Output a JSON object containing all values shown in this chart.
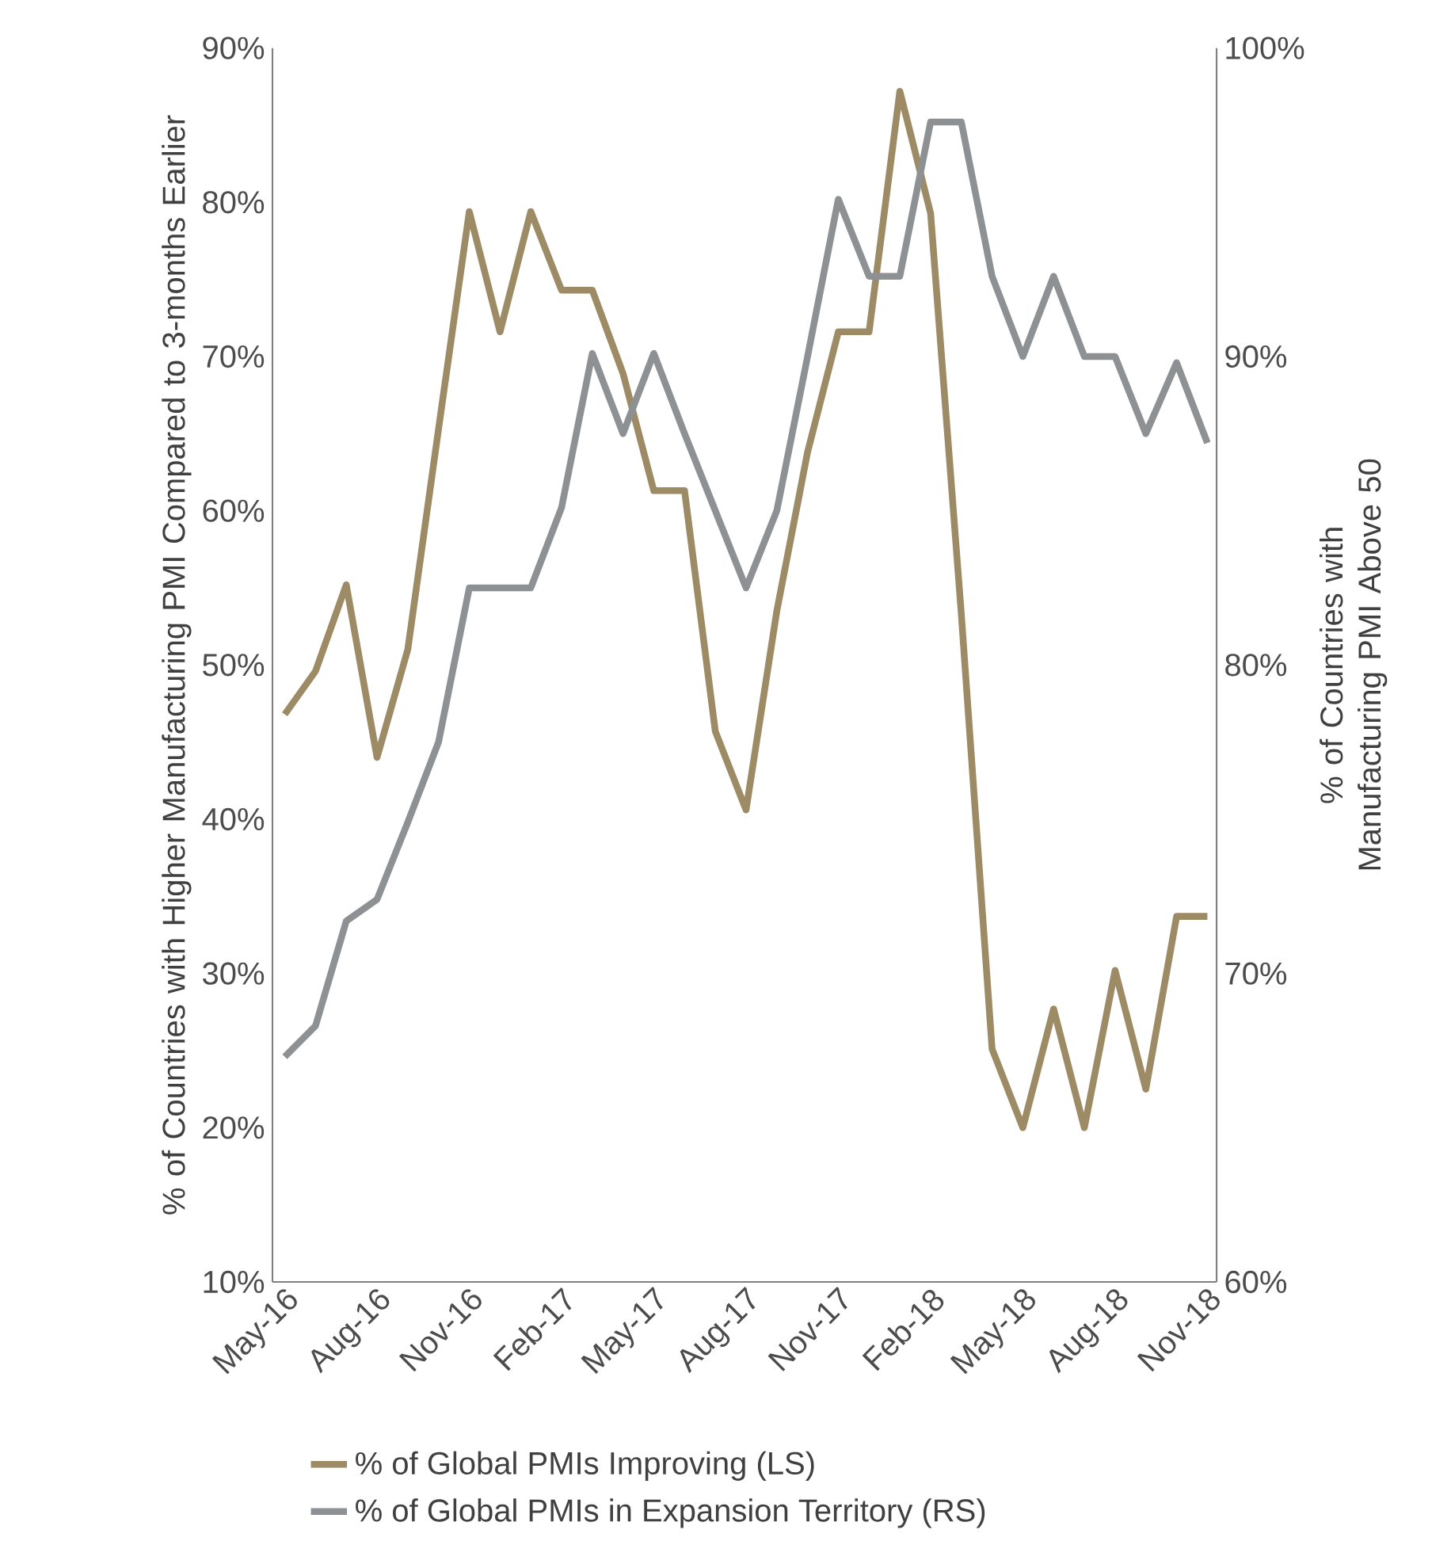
{
  "chart_data": {
    "type": "line",
    "categories": [
      "May-16",
      null,
      null,
      "Aug-16",
      null,
      null,
      "Nov-16",
      null,
      null,
      "Feb-17",
      null,
      null,
      "May-17",
      null,
      null,
      "Aug-17",
      null,
      null,
      "Nov-17",
      null,
      null,
      "Feb-18",
      null,
      null,
      "May-18",
      null,
      null,
      "Aug-18",
      null,
      null,
      "Nov-18"
    ],
    "series": [
      {
        "name": "% of Global PMIs Improving (LS)",
        "color": "#9d8b65",
        "values": [
          46.8,
          49.6,
          55.2,
          44.0,
          51.0,
          65.3,
          79.4,
          71.6,
          79.4,
          74.3,
          74.3,
          68.9,
          61.3,
          61.3,
          45.7,
          40.6,
          53.5,
          63.8,
          71.6,
          71.6,
          87.2,
          79.3,
          53.3,
          25.1,
          20.0,
          27.7,
          20.0,
          30.2,
          22.5,
          33.7,
          33.7
        ]
      },
      {
        "name": "% of Global PMIs in Expansion Territory (RS)",
        "color": "#8e9193",
        "axis": "y2",
        "values": [
          67.3,
          68.3,
          71.7,
          72.4,
          74.9,
          77.5,
          82.5,
          82.5,
          82.5,
          85.1,
          90.1,
          87.5,
          90.1,
          87.5,
          85.0,
          82.5,
          85.0,
          90.0,
          95.1,
          92.6,
          92.6,
          97.6,
          97.6,
          92.6,
          90.0,
          92.6,
          90.0,
          90.0,
          87.5,
          89.8,
          87.2
        ]
      }
    ],
    "ylabel": "% of Countries with Higher Manufacturing PMI Compared to 3-months Earlier",
    "y2label": "% of Countries with Manufacturing PMI Above 50",
    "ylim": [
      10,
      90
    ],
    "yticks": [
      {
        "value": 10,
        "label": "10%"
      },
      {
        "value": 20,
        "label": "20%"
      },
      {
        "value": 30,
        "label": "30%"
      },
      {
        "value": 40,
        "label": "40%"
      },
      {
        "value": 50,
        "label": "50%"
      },
      {
        "value": 60,
        "label": "60%"
      },
      {
        "value": 70,
        "label": "70%"
      },
      {
        "value": 80,
        "label": "80%"
      },
      {
        "value": 90,
        "label": "90%"
      }
    ],
    "y2lim": [
      60,
      100
    ],
    "y2ticks": [
      {
        "value": 60,
        "label": "60%"
      },
      {
        "value": 70,
        "label": "70%"
      },
      {
        "value": 80,
        "label": "80%"
      },
      {
        "value": 90,
        "label": "90%"
      },
      {
        "value": 100,
        "label": "100%"
      }
    ],
    "legend": "bottom",
    "grid": false,
    "marker": "none",
    "line_style": "solid"
  }
}
